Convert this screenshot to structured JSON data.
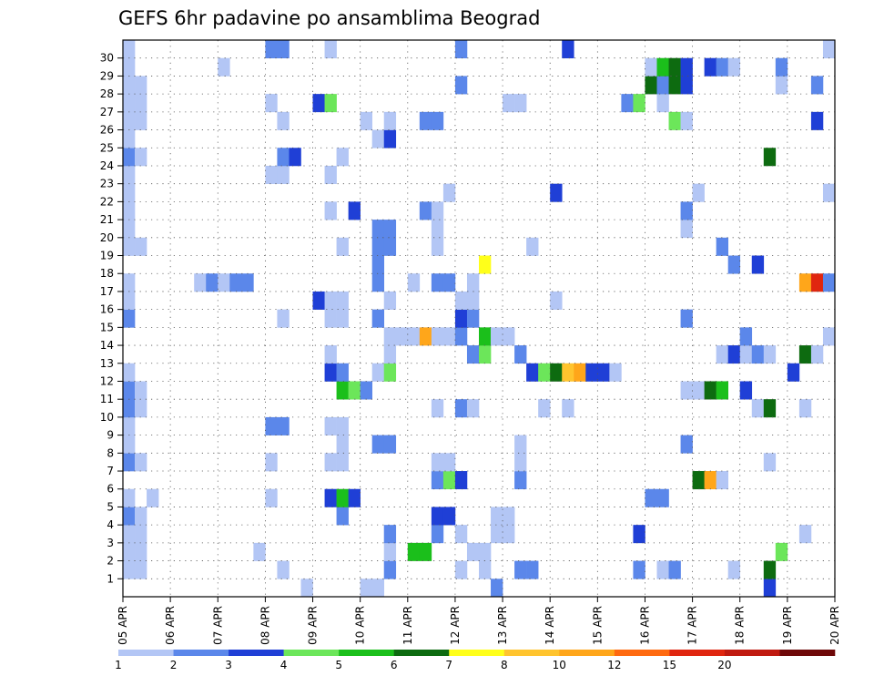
{
  "chart_data": {
    "type": "heatmap",
    "title": "GEFS 6hr padavine po ansamblima Beograd",
    "xlabel": "",
    "ylabel": "",
    "x_ticks": [
      "05 APR",
      "06 APR",
      "07 APR",
      "08 APR",
      "09 APR",
      "10 APR",
      "11 APR",
      "12 APR",
      "13 APR",
      "14 APR",
      "15 APR",
      "16 APR",
      "17 APR",
      "18 APR",
      "19 APR",
      "20 APR"
    ],
    "y_ticks": [
      1,
      2,
      3,
      4,
      5,
      6,
      7,
      8,
      9,
      10,
      11,
      12,
      13,
      14,
      15,
      16,
      17,
      18,
      19,
      20,
      21,
      22,
      23,
      24,
      25,
      26,
      27,
      28,
      29,
      30
    ],
    "xlim_days": [
      0,
      15
    ],
    "ylim": [
      0,
      30
    ],
    "grid": true,
    "colorbar": {
      "labels": [
        "1",
        "2",
        "3",
        "4",
        "5",
        "6",
        "7",
        "8",
        "10",
        "12",
        "15",
        "20"
      ],
      "colors": [
        "#b3c6f5",
        "#5b87ea",
        "#1f3fd6",
        "#6ce65a",
        "#1bbf1b",
        "#0d6b10",
        "#ffff1a",
        "#ffc42e",
        "#ffa61a",
        "#ff6a10",
        "#e0260f",
        "#c01a10",
        "#6e0808"
      ]
    },
    "step_hours": 6,
    "values": [
      {
        "t": 1,
        "m": 1,
        "v": 1
      },
      {
        "t": 1,
        "m": 2,
        "v": 1
      },
      {
        "t": 1,
        "m": 3,
        "v": 1
      },
      {
        "t": 1,
        "m": 4,
        "v": 2
      },
      {
        "t": 1,
        "m": 5,
        "v": 1
      },
      {
        "t": 1,
        "m": 7,
        "v": 2
      },
      {
        "t": 1,
        "m": 8,
        "v": 1
      },
      {
        "t": 1,
        "m": 9,
        "v": 1
      },
      {
        "t": 1,
        "m": 10,
        "v": 2
      },
      {
        "t": 1,
        "m": 11,
        "v": 2
      },
      {
        "t": 1,
        "m": 12,
        "v": 1
      },
      {
        "t": 1,
        "m": 15,
        "v": 2
      },
      {
        "t": 1,
        "m": 16,
        "v": 1
      },
      {
        "t": 1,
        "m": 17,
        "v": 1
      },
      {
        "t": 1,
        "m": 19,
        "v": 1
      },
      {
        "t": 1,
        "m": 20,
        "v": 1
      },
      {
        "t": 1,
        "m": 21,
        "v": 1
      },
      {
        "t": 1,
        "m": 22,
        "v": 1
      },
      {
        "t": 1,
        "m": 23,
        "v": 1
      },
      {
        "t": 1,
        "m": 24,
        "v": 2
      },
      {
        "t": 1,
        "m": 25,
        "v": 1
      },
      {
        "t": 1,
        "m": 26,
        "v": 1
      },
      {
        "t": 1,
        "m": 27,
        "v": 1
      },
      {
        "t": 1,
        "m": 28,
        "v": 1
      },
      {
        "t": 1,
        "m": 29,
        "v": 1
      },
      {
        "t": 1,
        "m": 30,
        "v": 1
      },
      {
        "t": 2,
        "m": 1,
        "v": 1
      },
      {
        "t": 2,
        "m": 2,
        "v": 1
      },
      {
        "t": 2,
        "m": 3,
        "v": 1
      },
      {
        "t": 2,
        "m": 4,
        "v": 1
      },
      {
        "t": 2,
        "m": 7,
        "v": 1
      },
      {
        "t": 2,
        "m": 10,
        "v": 1
      },
      {
        "t": 2,
        "m": 11,
        "v": 1
      },
      {
        "t": 2,
        "m": 19,
        "v": 1
      },
      {
        "t": 2,
        "m": 24,
        "v": 1
      },
      {
        "t": 2,
        "m": 26,
        "v": 1
      },
      {
        "t": 2,
        "m": 27,
        "v": 1
      },
      {
        "t": 2,
        "m": 28,
        "v": 1
      },
      {
        "t": 3,
        "m": 5,
        "v": 1
      },
      {
        "t": 7,
        "m": 17,
        "v": 1
      },
      {
        "t": 8,
        "m": 17,
        "v": 2
      },
      {
        "t": 9,
        "m": 17,
        "v": 1
      },
      {
        "t": 9,
        "m": 29,
        "v": 1
      },
      {
        "t": 10,
        "m": 17,
        "v": 2
      },
      {
        "t": 11,
        "m": 17,
        "v": 2
      },
      {
        "t": 12,
        "m": 2,
        "v": 1
      },
      {
        "t": 13,
        "m": 5,
        "v": 1
      },
      {
        "t": 13,
        "m": 7,
        "v": 1
      },
      {
        "t": 13,
        "m": 9,
        "v": 2
      },
      {
        "t": 13,
        "m": 23,
        "v": 1
      },
      {
        "t": 13,
        "m": 27,
        "v": 1
      },
      {
        "t": 13,
        "m": 30,
        "v": 2
      },
      {
        "t": 14,
        "m": 1,
        "v": 1
      },
      {
        "t": 14,
        "m": 9,
        "v": 2
      },
      {
        "t": 14,
        "m": 15,
        "v": 1
      },
      {
        "t": 14,
        "m": 23,
        "v": 1
      },
      {
        "t": 14,
        "m": 24,
        "v": 2
      },
      {
        "t": 14,
        "m": 26,
        "v": 1
      },
      {
        "t": 14,
        "m": 30,
        "v": 2
      },
      {
        "t": 15,
        "m": 24,
        "v": 3
      },
      {
        "t": 16,
        "m": 0,
        "v": 1
      },
      {
        "t": 17,
        "m": 27,
        "v": 3
      },
      {
        "t": 17,
        "m": 16,
        "v": 3
      },
      {
        "t": 18,
        "m": 5,
        "v": 3
      },
      {
        "t": 18,
        "m": 7,
        "v": 1
      },
      {
        "t": 18,
        "m": 9,
        "v": 1
      },
      {
        "t": 18,
        "m": 12,
        "v": 3
      },
      {
        "t": 18,
        "m": 13,
        "v": 1
      },
      {
        "t": 18,
        "m": 15,
        "v": 1
      },
      {
        "t": 18,
        "m": 16,
        "v": 1
      },
      {
        "t": 18,
        "m": 21,
        "v": 1
      },
      {
        "t": 18,
        "m": 23,
        "v": 1
      },
      {
        "t": 18,
        "m": 27,
        "v": 4
      },
      {
        "t": 18,
        "m": 30,
        "v": 1
      },
      {
        "t": 19,
        "m": 4,
        "v": 2
      },
      {
        "t": 19,
        "m": 5,
        "v": 5
      },
      {
        "t": 19,
        "m": 7,
        "v": 1
      },
      {
        "t": 19,
        "m": 8,
        "v": 1
      },
      {
        "t": 19,
        "m": 9,
        "v": 1
      },
      {
        "t": 19,
        "m": 11,
        "v": 5
      },
      {
        "t": 19,
        "m": 12,
        "v": 2
      },
      {
        "t": 19,
        "m": 15,
        "v": 1
      },
      {
        "t": 19,
        "m": 16,
        "v": 1
      },
      {
        "t": 19,
        "m": 19,
        "v": 1
      },
      {
        "t": 19,
        "m": 24,
        "v": 1
      },
      {
        "t": 20,
        "m": 5,
        "v": 3
      },
      {
        "t": 20,
        "m": 11,
        "v": 4
      },
      {
        "t": 20,
        "m": 21,
        "v": 3
      },
      {
        "t": 21,
        "m": 11,
        "v": 2
      },
      {
        "t": 21,
        "m": 0,
        "v": 1
      },
      {
        "t": 21,
        "m": 26,
        "v": 1
      },
      {
        "t": 22,
        "m": 8,
        "v": 2
      },
      {
        "t": 22,
        "m": 12,
        "v": 1
      },
      {
        "t": 22,
        "m": 15,
        "v": 2
      },
      {
        "t": 22,
        "m": 17,
        "v": 2
      },
      {
        "t": 22,
        "m": 18,
        "v": 2
      },
      {
        "t": 22,
        "m": 19,
        "v": 2
      },
      {
        "t": 22,
        "m": 20,
        "v": 2
      },
      {
        "t": 22,
        "m": 25,
        "v": 1
      },
      {
        "t": 22,
        "m": 0,
        "v": 1
      },
      {
        "t": 23,
        "m": 1,
        "v": 2
      },
      {
        "t": 23,
        "m": 2,
        "v": 1
      },
      {
        "t": 23,
        "m": 3,
        "v": 2
      },
      {
        "t": 23,
        "m": 8,
        "v": 2
      },
      {
        "t": 23,
        "m": 12,
        "v": 4
      },
      {
        "t": 23,
        "m": 13,
        "v": 1
      },
      {
        "t": 23,
        "m": 14,
        "v": 1
      },
      {
        "t": 23,
        "m": 16,
        "v": 1
      },
      {
        "t": 23,
        "m": 19,
        "v": 2
      },
      {
        "t": 23,
        "m": 20,
        "v": 2
      },
      {
        "t": 23,
        "m": 25,
        "v": 3
      },
      {
        "t": 23,
        "m": 26,
        "v": 1
      },
      {
        "t": 24,
        "m": 14,
        "v": 1
      },
      {
        "t": 25,
        "m": 2,
        "v": 5
      },
      {
        "t": 25,
        "m": 14,
        "v": 1
      },
      {
        "t": 25,
        "m": 17,
        "v": 1
      },
      {
        "t": 26,
        "m": 2,
        "v": 5
      },
      {
        "t": 26,
        "m": 14,
        "v": 9
      },
      {
        "t": 26,
        "m": 26,
        "v": 2
      },
      {
        "t": 26,
        "m": 21,
        "v": 2
      },
      {
        "t": 27,
        "m": 3,
        "v": 2
      },
      {
        "t": 27,
        "m": 4,
        "v": 3
      },
      {
        "t": 27,
        "m": 6,
        "v": 2
      },
      {
        "t": 27,
        "m": 7,
        "v": 1
      },
      {
        "t": 27,
        "m": 10,
        "v": 1
      },
      {
        "t": 27,
        "m": 14,
        "v": 1
      },
      {
        "t": 27,
        "m": 17,
        "v": 2
      },
      {
        "t": 27,
        "m": 19,
        "v": 1
      },
      {
        "t": 27,
        "m": 20,
        "v": 1
      },
      {
        "t": 27,
        "m": 21,
        "v": 1
      },
      {
        "t": 27,
        "m": 26,
        "v": 2
      },
      {
        "t": 28,
        "m": 4,
        "v": 3
      },
      {
        "t": 28,
        "m": 6,
        "v": 4
      },
      {
        "t": 28,
        "m": 7,
        "v": 1
      },
      {
        "t": 28,
        "m": 14,
        "v": 1
      },
      {
        "t": 28,
        "m": 17,
        "v": 2
      },
      {
        "t": 28,
        "m": 22,
        "v": 1
      },
      {
        "t": 29,
        "m": 1,
        "v": 1
      },
      {
        "t": 29,
        "m": 3,
        "v": 1
      },
      {
        "t": 29,
        "m": 6,
        "v": 3
      },
      {
        "t": 29,
        "m": 10,
        "v": 2
      },
      {
        "t": 29,
        "m": 14,
        "v": 2
      },
      {
        "t": 29,
        "m": 15,
        "v": 3
      },
      {
        "t": 29,
        "m": 16,
        "v": 1
      },
      {
        "t": 29,
        "m": 28,
        "v": 2
      },
      {
        "t": 29,
        "m": 30,
        "v": 2
      },
      {
        "t": 30,
        "m": 2,
        "v": 1
      },
      {
        "t": 30,
        "m": 10,
        "v": 1
      },
      {
        "t": 30,
        "m": 13,
        "v": 2
      },
      {
        "t": 30,
        "m": 15,
        "v": 2
      },
      {
        "t": 30,
        "m": 16,
        "v": 1
      },
      {
        "t": 30,
        "m": 17,
        "v": 1
      },
      {
        "t": 31,
        "m": 1,
        "v": 1
      },
      {
        "t": 31,
        "m": 2,
        "v": 1
      },
      {
        "t": 31,
        "m": 13,
        "v": 4
      },
      {
        "t": 31,
        "m": 14,
        "v": 5
      },
      {
        "t": 31,
        "m": 18,
        "v": 7
      },
      {
        "t": 32,
        "m": 0,
        "v": 2
      },
      {
        "t": 32,
        "m": 3,
        "v": 1
      },
      {
        "t": 32,
        "m": 4,
        "v": 1
      },
      {
        "t": 32,
        "m": 14,
        "v": 1
      },
      {
        "t": 33,
        "m": 3,
        "v": 1
      },
      {
        "t": 33,
        "m": 4,
        "v": 1
      },
      {
        "t": 33,
        "m": 14,
        "v": 1
      },
      {
        "t": 33,
        "m": 27,
        "v": 1
      },
      {
        "t": 34,
        "m": 1,
        "v": 2
      },
      {
        "t": 34,
        "m": 6,
        "v": 2
      },
      {
        "t": 34,
        "m": 7,
        "v": 1
      },
      {
        "t": 34,
        "m": 8,
        "v": 1
      },
      {
        "t": 34,
        "m": 13,
        "v": 2
      },
      {
        "t": 34,
        "m": 27,
        "v": 1
      },
      {
        "t": 35,
        "m": 1,
        "v": 2
      },
      {
        "t": 35,
        "m": 12,
        "v": 3
      },
      {
        "t": 35,
        "m": 19,
        "v": 1
      },
      {
        "t": 36,
        "m": 12,
        "v": 4
      },
      {
        "t": 36,
        "m": 10,
        "v": 1
      },
      {
        "t": 37,
        "m": 12,
        "v": 6
      },
      {
        "t": 37,
        "m": 16,
        "v": 1
      },
      {
        "t": 37,
        "m": 22,
        "v": 3
      },
      {
        "t": 38,
        "m": 12,
        "v": 8
      },
      {
        "t": 38,
        "m": 10,
        "v": 1
      },
      {
        "t": 38,
        "m": 30,
        "v": 3
      },
      {
        "t": 39,
        "m": 12,
        "v": 9
      },
      {
        "t": 40,
        "m": 12,
        "v": 3
      },
      {
        "t": 41,
        "m": 12,
        "v": 3
      },
      {
        "t": 42,
        "m": 12,
        "v": 1
      },
      {
        "t": 43,
        "m": 27,
        "v": 2
      },
      {
        "t": 44,
        "m": 1,
        "v": 2
      },
      {
        "t": 44,
        "m": 3,
        "v": 3
      },
      {
        "t": 44,
        "m": 27,
        "v": 4
      },
      {
        "t": 45,
        "m": 5,
        "v": 2
      },
      {
        "t": 45,
        "m": 28,
        "v": 6
      },
      {
        "t": 45,
        "m": 29,
        "v": 1
      },
      {
        "t": 46,
        "m": 1,
        "v": 1
      },
      {
        "t": 46,
        "m": 5,
        "v": 2
      },
      {
        "t": 46,
        "m": 27,
        "v": 1
      },
      {
        "t": 46,
        "m": 28,
        "v": 2
      },
      {
        "t": 46,
        "m": 29,
        "v": 5
      },
      {
        "t": 47,
        "m": 1,
        "v": 2
      },
      {
        "t": 47,
        "m": 26,
        "v": 4
      },
      {
        "t": 47,
        "m": 28,
        "v": 6
      },
      {
        "t": 47,
        "m": 29,
        "v": 6
      },
      {
        "t": 48,
        "m": 8,
        "v": 2
      },
      {
        "t": 48,
        "m": 11,
        "v": 1
      },
      {
        "t": 48,
        "m": 15,
        "v": 2
      },
      {
        "t": 48,
        "m": 20,
        "v": 1
      },
      {
        "t": 48,
        "m": 21,
        "v": 2
      },
      {
        "t": 48,
        "m": 26,
        "v": 1
      },
      {
        "t": 48,
        "m": 28,
        "v": 3
      },
      {
        "t": 48,
        "m": 29,
        "v": 3
      },
      {
        "t": 49,
        "m": 6,
        "v": 6
      },
      {
        "t": 49,
        "m": 11,
        "v": 1
      },
      {
        "t": 49,
        "m": 22,
        "v": 1
      },
      {
        "t": 50,
        "m": 6,
        "v": 9
      },
      {
        "t": 50,
        "m": 11,
        "v": 6
      },
      {
        "t": 50,
        "m": 29,
        "v": 3
      },
      {
        "t": 51,
        "m": 6,
        "v": 1
      },
      {
        "t": 51,
        "m": 11,
        "v": 5
      },
      {
        "t": 51,
        "m": 13,
        "v": 1
      },
      {
        "t": 51,
        "m": 19,
        "v": 2
      },
      {
        "t": 51,
        "m": 29,
        "v": 2
      },
      {
        "t": 52,
        "m": 1,
        "v": 1
      },
      {
        "t": 52,
        "m": 13,
        "v": 3
      },
      {
        "t": 52,
        "m": 18,
        "v": 2
      },
      {
        "t": 52,
        "m": 29,
        "v": 1
      },
      {
        "t": 53,
        "m": 11,
        "v": 3
      },
      {
        "t": 53,
        "m": 13,
        "v": 1
      },
      {
        "t": 53,
        "m": 14,
        "v": 2
      },
      {
        "t": 54,
        "m": 10,
        "v": 1
      },
      {
        "t": 54,
        "m": 13,
        "v": 2
      },
      {
        "t": 54,
        "m": 18,
        "v": 3
      },
      {
        "t": 55,
        "m": 0,
        "v": 3
      },
      {
        "t": 55,
        "m": 1,
        "v": 6
      },
      {
        "t": 55,
        "m": 7,
        "v": 1
      },
      {
        "t": 55,
        "m": 13,
        "v": 1
      },
      {
        "t": 55,
        "m": 24,
        "v": 6
      },
      {
        "t": 55,
        "m": 10,
        "v": 6
      },
      {
        "t": 56,
        "m": 2,
        "v": 4
      },
      {
        "t": 56,
        "m": 28,
        "v": 1
      },
      {
        "t": 56,
        "m": 29,
        "v": 2
      },
      {
        "t": 57,
        "m": 12,
        "v": 3
      },
      {
        "t": 58,
        "m": 3,
        "v": 1
      },
      {
        "t": 58,
        "m": 13,
        "v": 6
      },
      {
        "t": 58,
        "m": 17,
        "v": 9
      },
      {
        "t": 58,
        "m": 10,
        "v": 1
      },
      {
        "t": 59,
        "m": 13,
        "v": 1
      },
      {
        "t": 59,
        "m": 17,
        "v": 11
      },
      {
        "t": 59,
        "m": 26,
        "v": 3
      },
      {
        "t": 59,
        "m": 28,
        "v": 2
      },
      {
        "t": 60,
        "m": 14,
        "v": 1
      },
      {
        "t": 60,
        "m": 17,
        "v": 2
      },
      {
        "t": 60,
        "m": 22,
        "v": 1
      },
      {
        "t": 60,
        "m": 30,
        "v": 1
      }
    ]
  }
}
